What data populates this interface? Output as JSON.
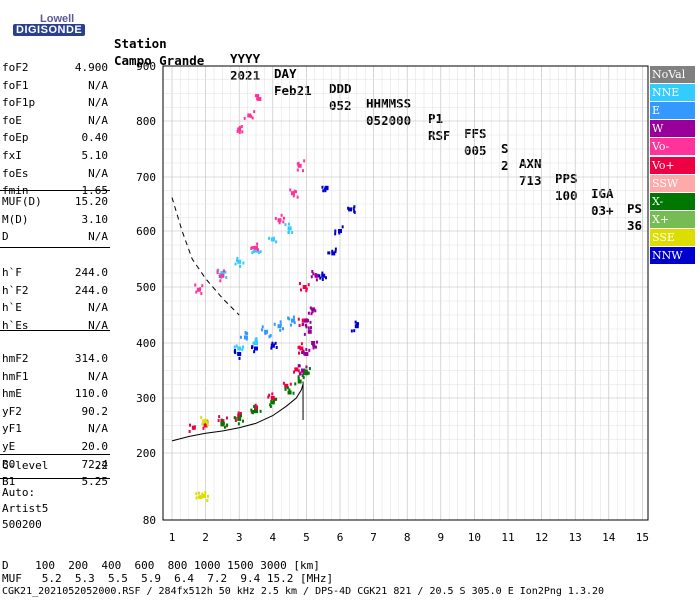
{
  "logo": {
    "line1": "Lowell",
    "line2": "DIGISONDE"
  },
  "header": {
    "labels": [
      "Station",
      "YYYY",
      "DAY",
      "DDD",
      "HHMMSS",
      "P1",
      "FFS",
      "S",
      "AXN",
      "PPS",
      "IGA",
      "PS"
    ],
    "values": [
      "Campo Grande",
      "2021",
      "Feb21",
      "052",
      "052000",
      "RSF",
      "005",
      "2",
      "713",
      "100",
      "03+",
      "36"
    ]
  },
  "params_group1": [
    {
      "k": "foF2",
      "v": "4.900"
    },
    {
      "k": "foF1",
      "v": "N/A"
    },
    {
      "k": "foF1p",
      "v": "N/A"
    },
    {
      "k": "foE",
      "v": "N/A"
    },
    {
      "k": "foEp",
      "v": "0.40"
    },
    {
      "k": "fxI",
      "v": "5.10"
    },
    {
      "k": "foEs",
      "v": "N/A"
    },
    {
      "k": "fmin",
      "v": "1.65"
    }
  ],
  "params_group2": [
    {
      "k": "MUF(D)",
      "v": "15.20"
    },
    {
      "k": "M(D)",
      "v": "3.10"
    },
    {
      "k": "D",
      "v": "N/A"
    }
  ],
  "params_group3": [
    {
      "k": "h`F",
      "v": "244.0"
    },
    {
      "k": "h`F2",
      "v": "244.0"
    },
    {
      "k": "h`E",
      "v": "N/A"
    },
    {
      "k": "h`Es",
      "v": "N/A"
    }
  ],
  "params_group4": [
    {
      "k": "hmF2",
      "v": "314.0"
    },
    {
      "k": "hmF1",
      "v": "N/A"
    },
    {
      "k": "hmE",
      "v": "110.0"
    },
    {
      "k": "yF2",
      "v": "90.2"
    },
    {
      "k": "yF1",
      "v": "N/A"
    },
    {
      "k": "yE",
      "v": "20.0"
    },
    {
      "k": "B0",
      "v": "72.4"
    },
    {
      "k": "B1",
      "v": "5.25"
    }
  ],
  "params_group5": [
    {
      "k": "C-level",
      "v": "22"
    }
  ],
  "autoscale": {
    "line1": "Auto:",
    "line2": "Artist5",
    "line3": "500200"
  },
  "legend": [
    {
      "label": "NoVal",
      "color": "#808080"
    },
    {
      "label": "NNE",
      "color": "#33ccff"
    },
    {
      "label": "E",
      "color": "#3399ff"
    },
    {
      "label": "W",
      "color": "#990099"
    },
    {
      "label": "Vo-",
      "color": "#ff3399"
    },
    {
      "label": "Vo+",
      "color": "#ee0044"
    },
    {
      "label": "SSW",
      "color": "#ffaaaa"
    },
    {
      "label": "X-",
      "color": "#007700"
    },
    {
      "label": "X+",
      "color": "#77bb55"
    },
    {
      "label": "SSE",
      "color": "#dddd00"
    },
    {
      "label": "NNW",
      "color": "#0000cc"
    }
  ],
  "footer": {
    "d_line": "D    100  200  400  600  800 1000 1500 3000 [km]",
    "muf_line": "MUF   5.2  5.3  5.5  5.9  6.4  7.2  9.4 15.2 [MHz]",
    "file_line": "CGK21_2021052052000.RSF / 284fx512h 50 kHz 2.5 km / DPS-4D CGK21 821 / 20.5 S 305.0 E Ion2Png 1.3.20"
  },
  "chart_data": {
    "type": "scatter",
    "xlim": [
      0.8,
      15
    ],
    "ylim": [
      80,
      900
    ],
    "x_ticks": [
      "1",
      "2",
      "3",
      "4",
      "5",
      "6",
      "7",
      "8",
      "9",
      "10",
      "11",
      "12",
      "13",
      "14",
      "15"
    ],
    "y_ticks": [
      "80",
      "200",
      "300",
      "400",
      "500",
      "600",
      "700",
      "800",
      "900"
    ],
    "grid": true,
    "series": [
      {
        "name": "Vo+",
        "color": "#ee0044",
        "points": [
          [
            1.65,
            246
          ],
          [
            2.0,
            250
          ],
          [
            2.5,
            258
          ],
          [
            3.0,
            268
          ],
          [
            3.5,
            282
          ],
          [
            4.0,
            300
          ],
          [
            4.4,
            322
          ],
          [
            4.7,
            352
          ],
          [
            4.85,
            390
          ],
          [
            4.92,
            440
          ],
          [
            4.95,
            500
          ]
        ]
      },
      {
        "name": "W",
        "color": "#990099",
        "points": [
          [
            4.9,
            350
          ],
          [
            5.0,
            380
          ],
          [
            5.1,
            420
          ],
          [
            5.2,
            460
          ],
          [
            5.3,
            520
          ],
          [
            5.0,
            440
          ],
          [
            5.2,
            400
          ]
        ]
      },
      {
        "name": "X-",
        "color": "#007700",
        "points": [
          [
            2.5,
            252
          ],
          [
            3.0,
            262
          ],
          [
            3.5,
            276
          ],
          [
            4.0,
            292
          ],
          [
            4.5,
            310
          ],
          [
            4.8,
            330
          ],
          [
            5.0,
            345
          ]
        ]
      },
      {
        "name": "NNE",
        "color": "#33ccff",
        "points": [
          [
            2.5,
            525
          ],
          [
            3.0,
            545
          ],
          [
            3.5,
            565
          ],
          [
            4.0,
            585
          ],
          [
            4.5,
            605
          ],
          [
            3.0,
            390
          ],
          [
            3.5,
            400
          ]
        ]
      },
      {
        "name": "E",
        "color": "#3399ff",
        "points": [
          [
            3.2,
            410
          ],
          [
            3.8,
            420
          ],
          [
            4.2,
            430
          ],
          [
            4.6,
            440
          ]
        ]
      },
      {
        "name": "NNW",
        "color": "#0000cc",
        "points": [
          [
            3.0,
            380
          ],
          [
            3.5,
            390
          ],
          [
            4.0,
            395
          ],
          [
            5.5,
            520
          ],
          [
            5.8,
            560
          ],
          [
            6.0,
            600
          ],
          [
            6.3,
            640
          ],
          [
            5.6,
            680
          ],
          [
            6.5,
            430
          ]
        ]
      },
      {
        "name": "Vo-",
        "color": "#ff3399",
        "points": [
          [
            1.8,
            495
          ],
          [
            2.5,
            520
          ],
          [
            3.5,
            570
          ],
          [
            4.2,
            620
          ],
          [
            4.6,
            670
          ],
          [
            4.8,
            720
          ],
          [
            3.0,
            785
          ],
          [
            3.3,
            810
          ],
          [
            3.6,
            840
          ]
        ]
      },
      {
        "name": "SSE",
        "color": "#dddd00",
        "points": [
          [
            1.85,
            121
          ],
          [
            1.95,
            123
          ],
          [
            2.0,
            258
          ]
        ]
      }
    ],
    "curves": [
      {
        "name": "profile",
        "style": "solid",
        "points": [
          [
            1.0,
            222
          ],
          [
            1.5,
            230
          ],
          [
            2.0,
            236
          ],
          [
            2.5,
            240
          ],
          [
            3.0,
            246
          ],
          [
            3.5,
            254
          ],
          [
            4.0,
            268
          ],
          [
            4.4,
            285
          ],
          [
            4.7,
            300
          ],
          [
            4.85,
            315
          ],
          [
            4.9,
            325
          ]
        ]
      },
      {
        "name": "dashed",
        "style": "dashed",
        "points": [
          [
            1.0,
            662
          ],
          [
            1.3,
            600
          ],
          [
            1.6,
            550
          ],
          [
            2.0,
            515
          ],
          [
            2.5,
            480
          ],
          [
            3.0,
            450
          ]
        ]
      }
    ]
  }
}
